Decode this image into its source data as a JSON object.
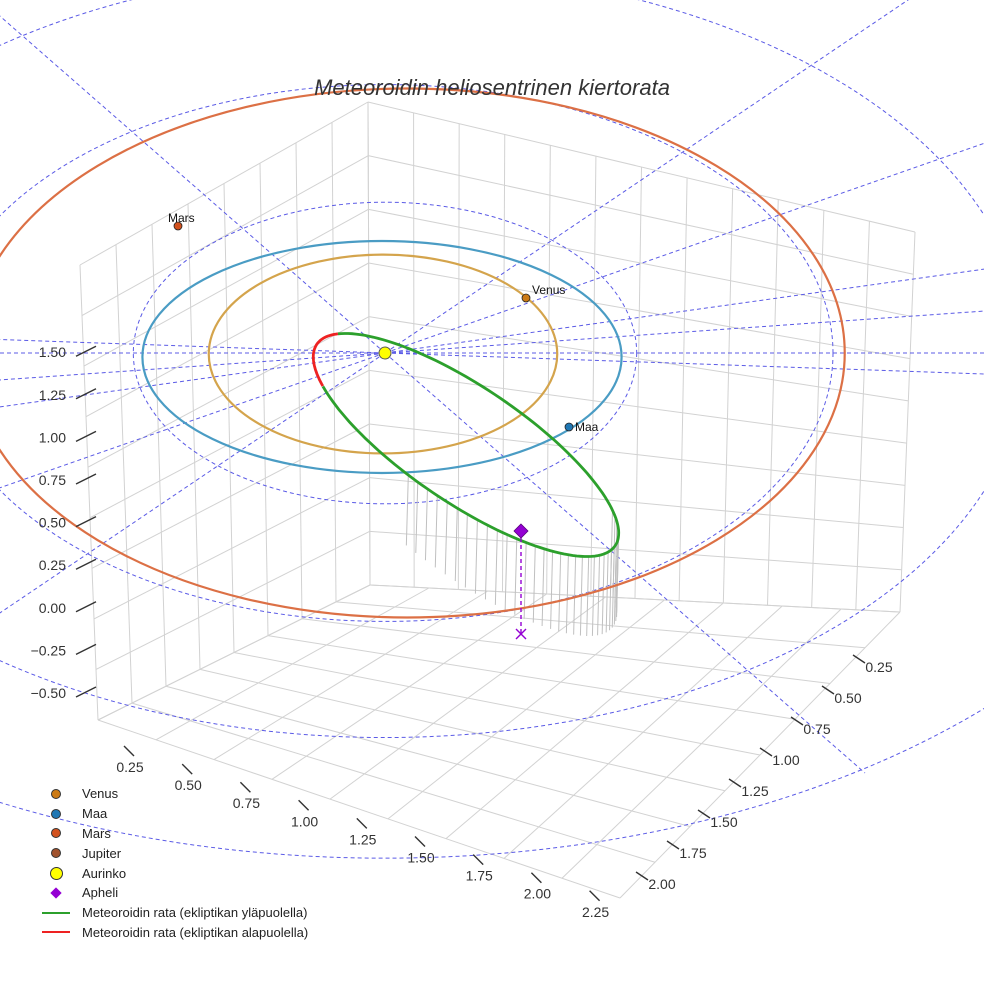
{
  "chart_data": {
    "type": "scatter",
    "projection": "3d",
    "title": "Meteoroidin heliosentrinen kiertorata",
    "x_ticks": [
      "0.25",
      "0.50",
      "0.75",
      "1.00",
      "1.25",
      "1.50",
      "1.75",
      "2.00",
      "2.25"
    ],
    "y_ticks": [
      "0.25",
      "0.50",
      "0.75",
      "1.00",
      "1.25",
      "1.50",
      "1.75",
      "2.00"
    ],
    "z_ticks": [
      "−0.50",
      "−0.25",
      "0.00",
      "0.25",
      "0.50",
      "0.75",
      "1.00",
      "1.25",
      "1.50"
    ],
    "xlim": [
      0.0,
      2.3
    ],
    "ylim": [
      0.0,
      2.1
    ],
    "zlim": [
      -0.6,
      1.6
    ],
    "orbits": [
      {
        "name": "Venus",
        "radius_au": 0.72,
        "color": "#d4a44c"
      },
      {
        "name": "Maa",
        "radius_au": 1.0,
        "color": "#4a9cc4"
      },
      {
        "name": "Mars",
        "radius_au": 1.52,
        "color": "#dc7045"
      }
    ],
    "planets": [
      {
        "name": "Venus",
        "label": "Venus",
        "x": 0.29,
        "y": 0.56,
        "z": 1.5,
        "color": "#cc7a14"
      },
      {
        "name": "Maa",
        "label": "Maa",
        "x": 1.06,
        "y": 0.54,
        "z": 1.5,
        "color": "#1f77b4"
      },
      {
        "name": "Mars",
        "label": "Mars",
        "x": -0.52,
        "y": 1.32,
        "z": 1.5,
        "color": "#d2521e"
      }
    ],
    "sun": {
      "name": "Aurinko",
      "x": 0.0,
      "y": 0.0,
      "z": 1.5,
      "color": "#ffff00"
    },
    "aphelion": {
      "name": "Apheli",
      "x": 1.25,
      "y": 0.12,
      "z": 1.22,
      "projection_z": 0.0,
      "color": "#9400d3"
    },
    "meteoroid_orbit": {
      "segments": [
        {
          "name": "Meteoroidin rata (ekliptikan yläpuolella)",
          "color": "#2ca02c"
        },
        {
          "name": "Meteoroidin rata (ekliptikan alapuolella)",
          "color": "#ee2222"
        }
      ]
    },
    "legend": [
      {
        "label": "Venus",
        "symbol": "dot",
        "color": "#cc7a14"
      },
      {
        "label": "Maa",
        "symbol": "dot",
        "color": "#1f77b4"
      },
      {
        "label": "Mars",
        "symbol": "dot",
        "color": "#d2521e"
      },
      {
        "label": "Jupiter",
        "symbol": "dot",
        "color": "#a0522d"
      },
      {
        "label": "Aurinko",
        "symbol": "bigdot",
        "color": "#ffff00"
      },
      {
        "label": "Apheli",
        "symbol": "diamond",
        "color": "#9400d3"
      },
      {
        "label": "Meteoroidin rata (ekliptikan yläpuolella)",
        "symbol": "line",
        "color": "#2ca02c"
      },
      {
        "label": "Meteoroidin rata (ekliptikan alapuolella)",
        "symbol": "line",
        "color": "#ee2222"
      }
    ],
    "legend_position": "bottom-left",
    "grid": true
  }
}
